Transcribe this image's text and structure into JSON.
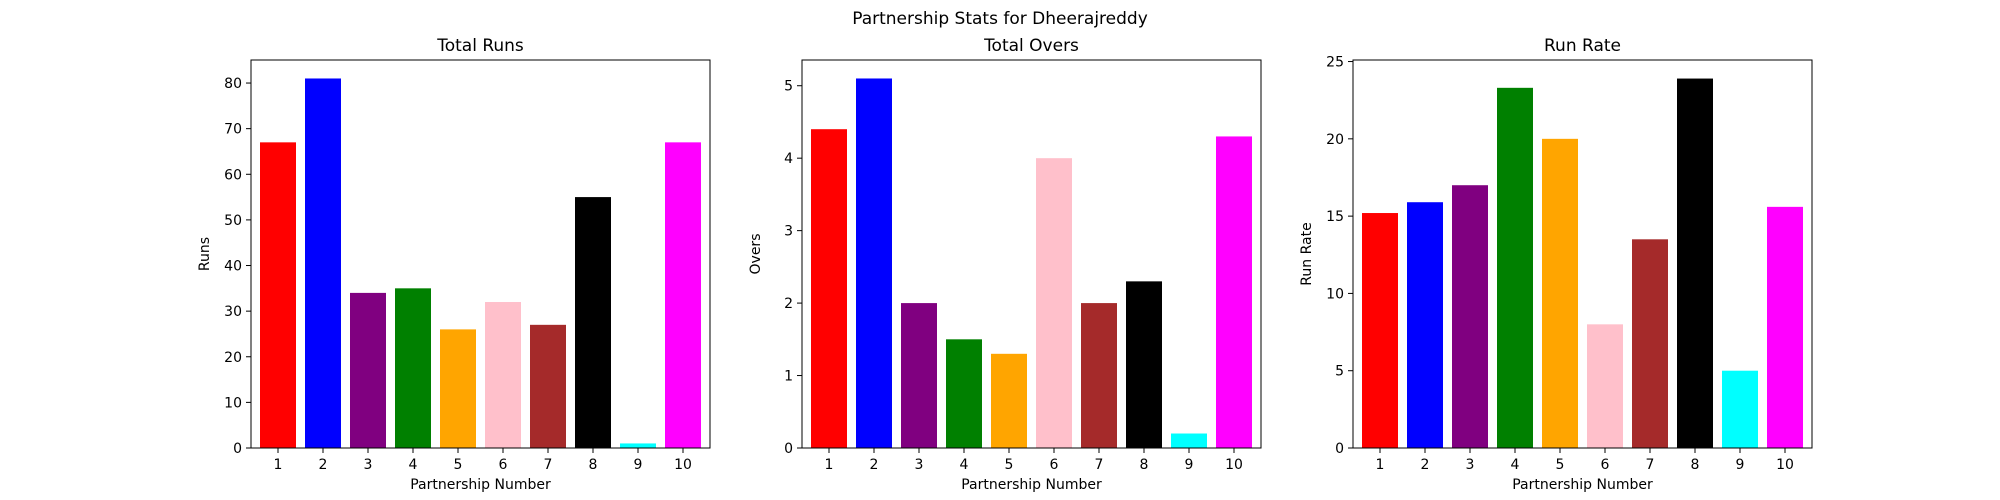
{
  "figure": {
    "title": "Partnership Stats for Dheerajreddy"
  },
  "colors": [
    "#ff0000",
    "#0000ff",
    "#800080",
    "#008000",
    "#ffa500",
    "#ffc0cb",
    "#a52a2a",
    "#000000",
    "#00ffff",
    "#ff00ff"
  ],
  "chart_data": [
    {
      "type": "bar",
      "title": "Total Runs",
      "xlabel": "Partnership Number",
      "ylabel": "Runs",
      "categories": [
        "1",
        "2",
        "3",
        "4",
        "5",
        "6",
        "7",
        "8",
        "9",
        "10"
      ],
      "values": [
        67,
        81,
        34,
        35,
        26,
        32,
        27,
        55,
        1,
        67
      ],
      "ylim": [
        0,
        85.05
      ],
      "yticks": [
        0,
        10,
        20,
        30,
        40,
        50,
        60,
        70,
        80
      ],
      "grid": false
    },
    {
      "type": "bar",
      "title": "Total Overs",
      "xlabel": "Partnership Number",
      "ylabel": "Overs",
      "categories": [
        "1",
        "2",
        "3",
        "4",
        "5",
        "6",
        "7",
        "8",
        "9",
        "10"
      ],
      "values": [
        4.4,
        5.1,
        2.0,
        1.5,
        1.3,
        4.0,
        2.0,
        2.3,
        0.2,
        4.3
      ],
      "ylim": [
        0,
        5.355
      ],
      "yticks": [
        0,
        1,
        2,
        3,
        4,
        5
      ],
      "grid": false
    },
    {
      "type": "bar",
      "title": "Run Rate",
      "xlabel": "Partnership Number",
      "ylabel": "Run Rate",
      "categories": [
        "1",
        "2",
        "3",
        "4",
        "5",
        "6",
        "7",
        "8",
        "9",
        "10"
      ],
      "values": [
        15.2,
        15.9,
        17.0,
        23.3,
        20.0,
        8.0,
        13.5,
        23.9,
        5.0,
        15.6
      ],
      "ylim": [
        0,
        25.1
      ],
      "yticks": [
        0,
        5,
        10,
        15,
        20,
        25
      ],
      "grid": false
    }
  ]
}
